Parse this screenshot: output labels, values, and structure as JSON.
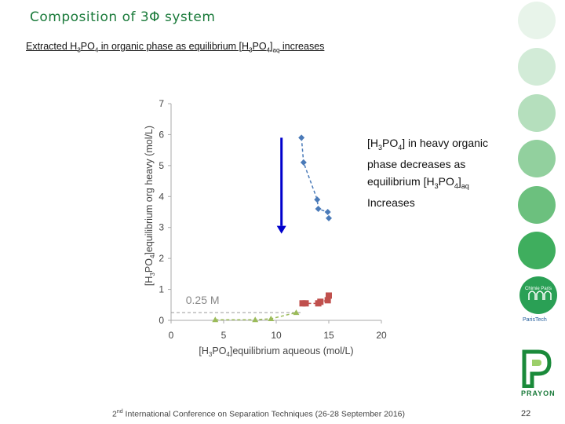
{
  "slide": {
    "title": "Composition of 3Φ system",
    "subtitle_parts": [
      "Extracted H",
      "3",
      "PO",
      "4",
      " in organic phase as equilibrium [H",
      "3",
      "PO",
      "4",
      "]",
      "aq",
      " increases"
    ],
    "annotation_parts": [
      "[H",
      "3",
      "PO",
      "4",
      "] in heavy organic phase decreases as equilibrium [H",
      "3",
      "PO",
      "4",
      "]",
      "aq",
      " Increases"
    ],
    "footer_parts": [
      "2",
      "nd",
      " International Conference on Separation Techniques (26-28 September 2016)"
    ],
    "page_number": "22",
    "logos": {
      "chimie_paris": "Chimie Paris",
      "paristech": "ParisTech",
      "prayon": "PRAYON"
    },
    "side_dot_colors": [
      "#e8f4ea",
      "#d2ebd7",
      "#b5dfbd",
      "#92d09e",
      "#6cc07e",
      "#3fae5e"
    ]
  },
  "chart_data": {
    "type": "scatter",
    "xlabel_parts": [
      "[H",
      "3",
      "PO",
      "4",
      "]equilibrium aqueous (mol/L)"
    ],
    "ylabel_parts": [
      "[H",
      "3",
      "PO",
      "4",
      "]equilibrium org heavy (mol/L)"
    ],
    "xlim": [
      0,
      20
    ],
    "ylim": [
      0,
      7
    ],
    "xticks": [
      0,
      5,
      10,
      15,
      20
    ],
    "yticks": [
      0,
      1,
      2,
      3,
      4,
      5,
      6,
      7
    ],
    "grid": false,
    "series": [
      {
        "style": "diamond-dashed",
        "color": "#4a7ab8",
        "x": [
          12.4,
          12.6,
          13.9,
          14.0,
          14.9,
          15.0
        ],
        "y": [
          5.9,
          5.1,
          3.9,
          3.6,
          3.5,
          3.3
        ]
      },
      {
        "style": "square-dashed",
        "color": "#c0504d",
        "x": [
          12.5,
          12.8,
          14.0,
          14.2,
          14.9,
          15.0
        ],
        "y": [
          0.55,
          0.55,
          0.55,
          0.6,
          0.65,
          0.8
        ]
      },
      {
        "style": "triangle-dashed",
        "color": "#9bbb59",
        "x": [
          4.2,
          8.0,
          9.5,
          11.9
        ],
        "y": [
          0.02,
          0.02,
          0.05,
          0.25
        ]
      }
    ],
    "reference_line": {
      "label": "0.25 M",
      "y": 0.25,
      "x_from": 0,
      "x_to": 12.5
    },
    "arrow": {
      "x": 10.5,
      "y_from": 5.9,
      "y_to": 2.8,
      "color": "#0000cc"
    }
  }
}
